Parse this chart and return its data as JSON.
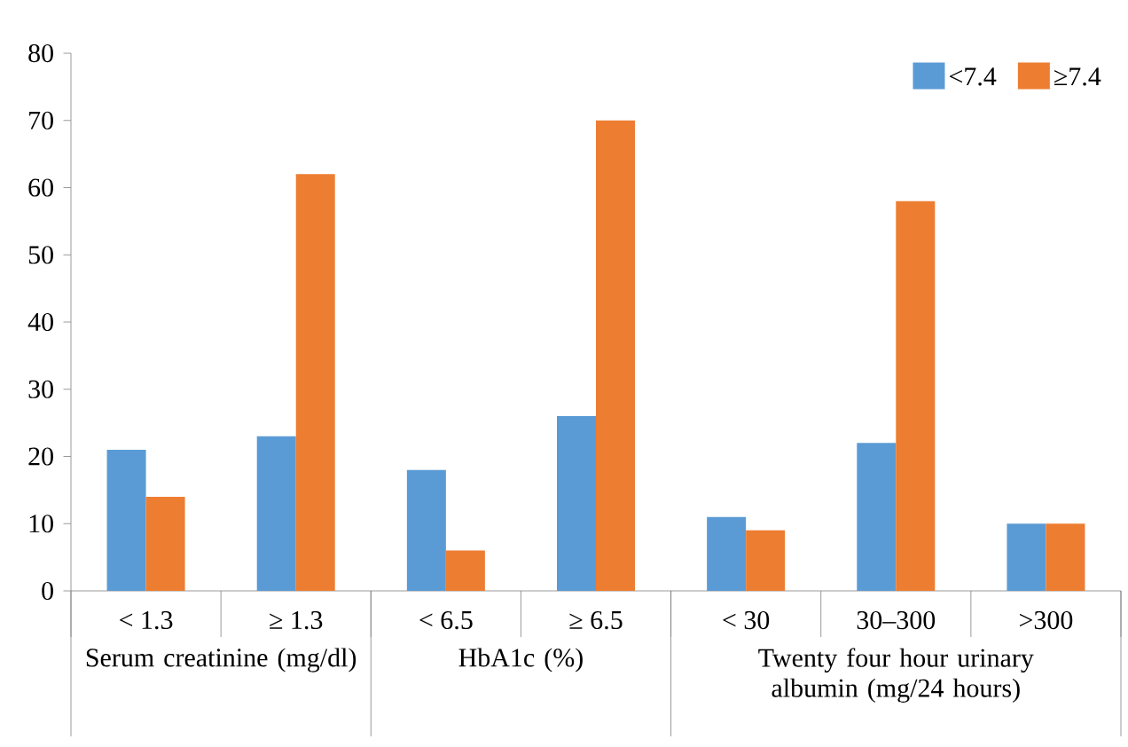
{
  "chart_data": {
    "type": "bar",
    "categories": [
      "< 1.3",
      "≥ 1.3",
      "< 6.5",
      "≥ 6.5",
      "< 30",
      "30–300",
      ">300"
    ],
    "series": [
      {
        "name": "<7.4",
        "color": "#5b9bd5",
        "values": [
          21,
          23,
          18,
          26,
          11,
          22,
          10
        ]
      },
      {
        "name": "≥7.4",
        "color": "#ed7d31",
        "values": [
          14,
          62,
          6,
          70,
          9,
          58,
          10
        ]
      }
    ],
    "annotations": [
      "Serum creatinine (mg/dl)",
      "HbA1c (%)",
      "Twenty four hour urinary albumin (mg/24 hours)"
    ],
    "ylim": [
      0,
      80
    ],
    "yticks": [
      0,
      10,
      20,
      30,
      40,
      50,
      60,
      70,
      80
    ],
    "grid": false,
    "legend": "top right"
  }
}
